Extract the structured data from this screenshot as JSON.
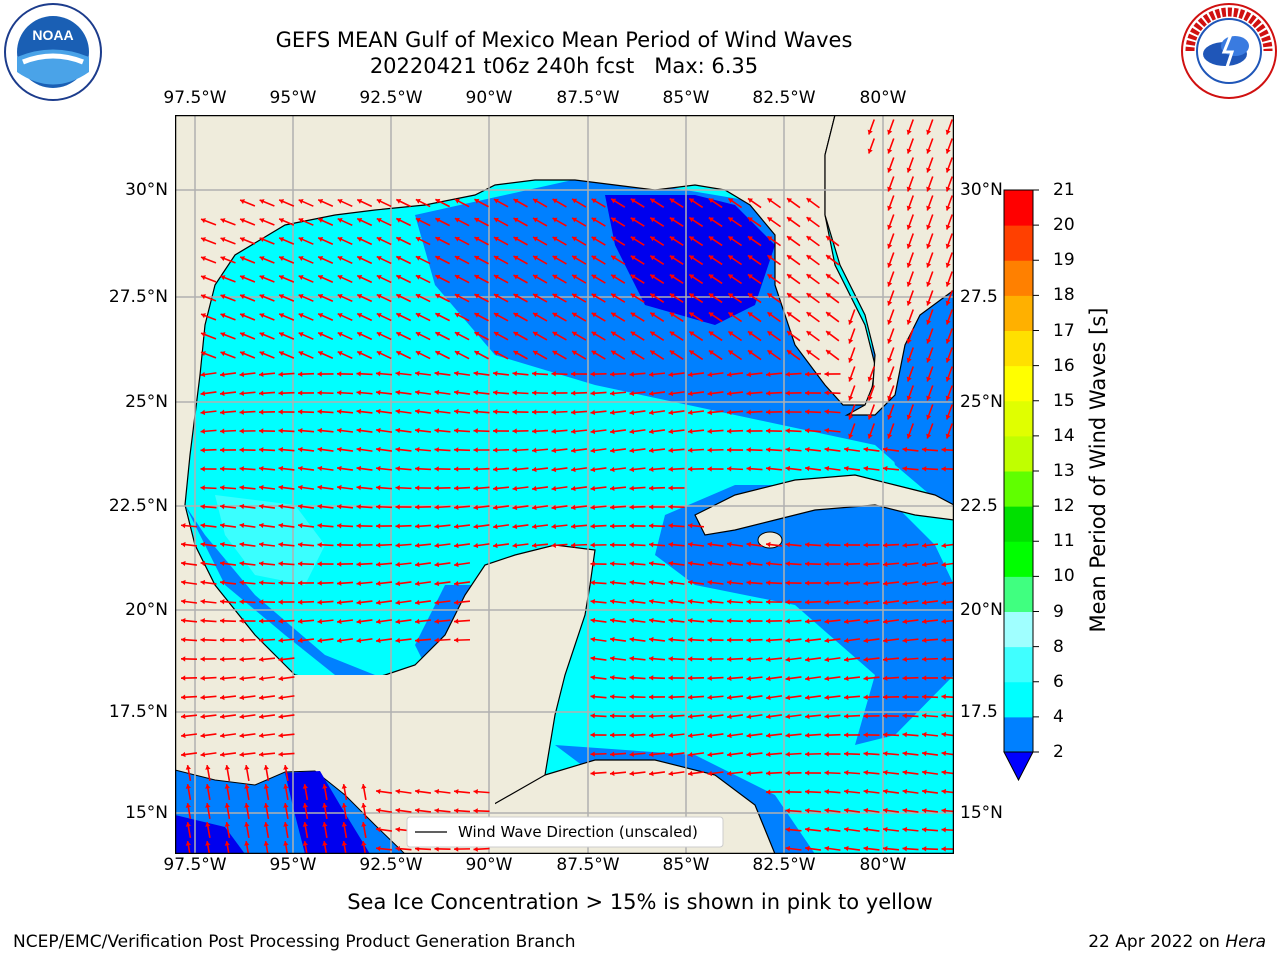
{
  "header": {
    "title_line1": "GEFS MEAN Gulf of Mexico Mean Period of Wind Waves",
    "title_line2": "20220421 t06z 240h fcst   Max: 6.35"
  },
  "map": {
    "lon_ticks": [
      "97.5°W",
      "95°W",
      "92.5°W",
      "90°W",
      "87.5°W",
      "85°W",
      "82.5°W",
      "80°W"
    ],
    "lat_ticks": [
      "30°N",
      "27.5°N",
      "25°N",
      "22.5°N",
      "20°N",
      "17.5°N",
      "15°N"
    ],
    "lat_ticks_right": [
      "30°N",
      "27.5",
      "25°N",
      "22.5",
      "20°N",
      "17.5",
      "15°N"
    ],
    "legend_label": "Wind Wave Direction (unscaled)",
    "colors": {
      "land": "#efecdc",
      "ocean_low": "#0000ee",
      "ocean_2_4": "#0080ff",
      "ocean_4_6": "#00ffff",
      "ocean_6_8": "#60ffff",
      "arrow": "#ff0000"
    }
  },
  "colorbar": {
    "title": "Mean Period of Wind Waves [s]",
    "ticks": [
      "2",
      "4",
      "6",
      "8",
      "9",
      "10",
      "11",
      "12",
      "13",
      "14",
      "15",
      "16",
      "17",
      "18",
      "19",
      "20",
      "21"
    ],
    "colors": [
      "#0080ff",
      "#00ffff",
      "#40ffff",
      "#a0ffff",
      "#40ff80",
      "#00ff00",
      "#00e000",
      "#60ff00",
      "#c0ff00",
      "#e0ff00",
      "#ffff00",
      "#ffe000",
      "#ffb000",
      "#ff8000",
      "#ff4000",
      "#ff0000"
    ],
    "extend_color": "#0000ff"
  },
  "footer": {
    "subtitle": "Sea Ice Concentration > 15% is shown in pink to yellow",
    "credit": "NCEP/EMC/Verification Post Processing Product Generation Branch",
    "date": "22 Apr 2022 on ",
    "host": "Hera"
  },
  "logos": {
    "left": "NOAA",
    "right_text": "NATIONAL WEATHER SERVICE"
  }
}
